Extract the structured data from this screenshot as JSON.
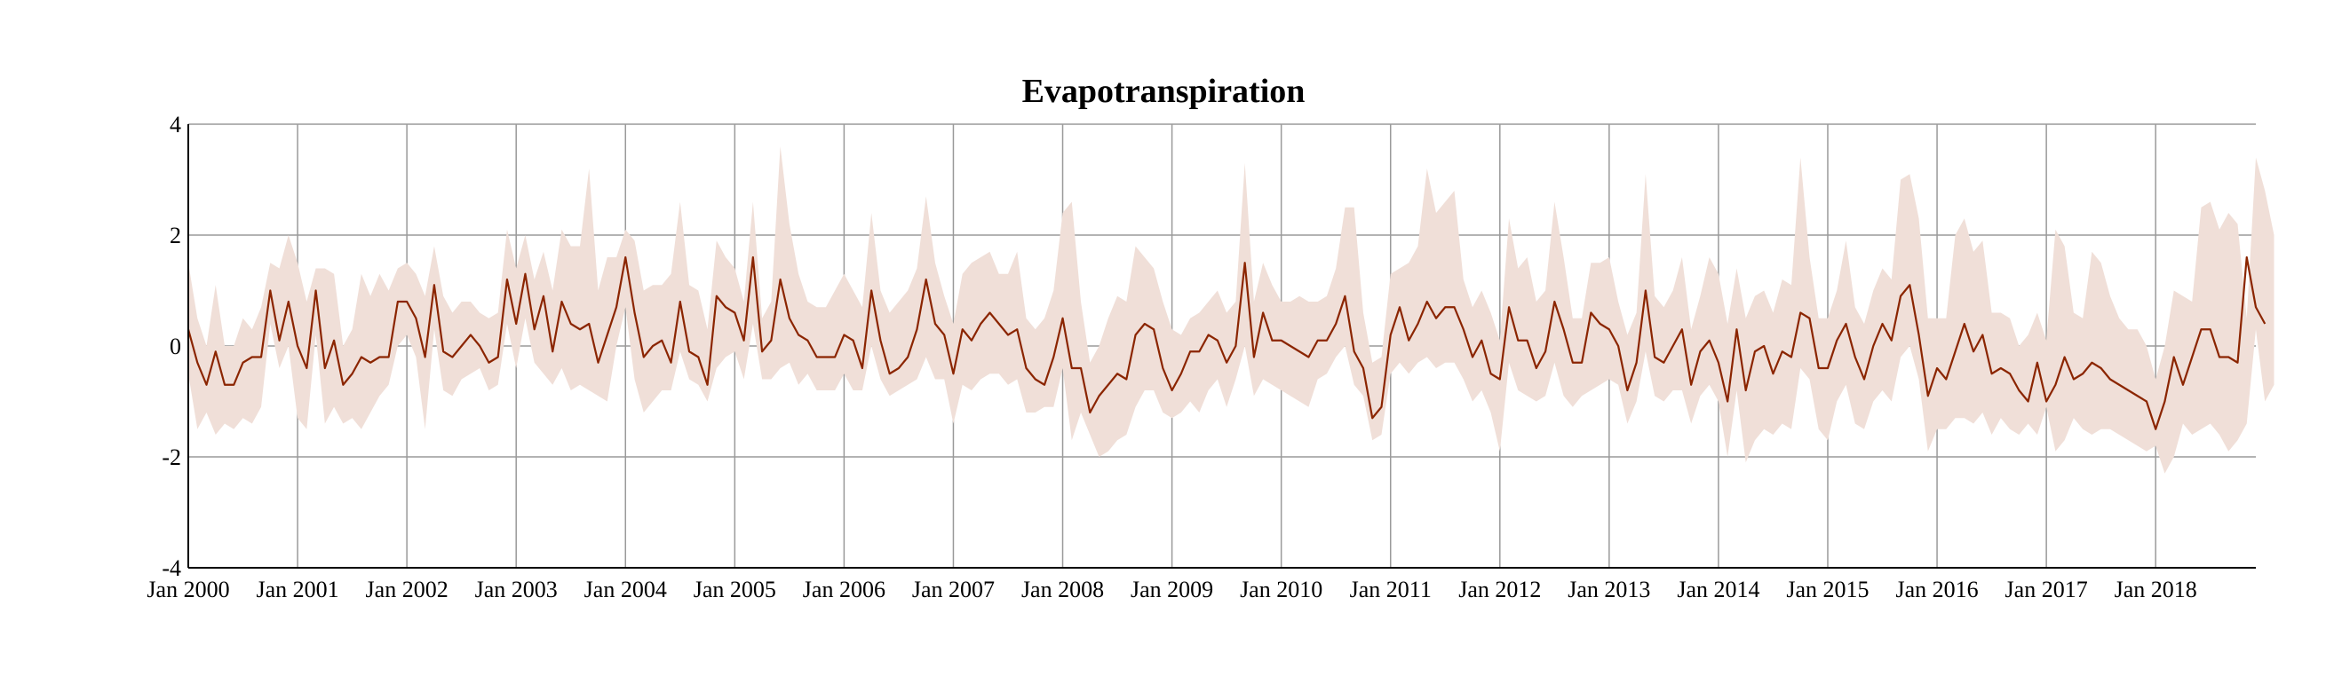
{
  "chart_data": {
    "type": "line",
    "title": "Evapotranspiration",
    "xlabel": "",
    "ylabel": "",
    "ylim": [
      -4,
      4
    ],
    "yticks": [
      4,
      2,
      0,
      -2,
      -4
    ],
    "ytick_labels": [
      "4",
      "2",
      "0",
      "-2",
      "-4"
    ],
    "xlim": [
      "2000-01",
      "2018-12"
    ],
    "xtick_labels": [
      "Jan 2000",
      "Jan 2001",
      "Jan 2002",
      "Jan 2003",
      "Jan 2004",
      "Jan 2005",
      "Jan 2006",
      "Jan 2007",
      "Jan 2008",
      "Jan 2009",
      "Jan 2010",
      "Jan 2011",
      "Jan 2012",
      "Jan 2013",
      "Jan 2014",
      "Jan 2015",
      "Jan 2016",
      "Jan 2017",
      "Jan 2018"
    ],
    "grid": true,
    "legend": "none",
    "colors": {
      "line": "#8b2500",
      "band": "#f0dfd8",
      "grid": "#9a9a9a"
    },
    "series": [
      {
        "role": "mean",
        "values": [
          0.3,
          -0.3,
          -0.7,
          -0.1,
          -0.7,
          -0.7,
          -0.3,
          -0.2,
          -0.2,
          1.0,
          0.1,
          0.8,
          0.0,
          -0.4,
          1.0,
          -0.4,
          0.1,
          -0.7,
          -0.5,
          -0.2,
          -0.3,
          -0.2,
          -0.2,
          0.8,
          0.8,
          0.5,
          -0.2,
          1.1,
          -0.1,
          -0.2,
          0.0,
          0.2,
          0.0,
          -0.3,
          -0.2,
          1.2,
          0.4,
          1.3,
          0.3,
          0.9,
          -0.1,
          0.8,
          0.4,
          0.3,
          0.4,
          -0.3,
          0.2,
          0.7,
          1.6,
          0.6,
          -0.2,
          0.0,
          0.1,
          -0.3,
          0.8,
          -0.1,
          -0.2,
          -0.7,
          0.9,
          0.7,
          0.6,
          0.1,
          1.6,
          -0.1,
          0.1,
          1.2,
          0.5,
          0.2,
          0.1,
          -0.2,
          -0.2,
          -0.2,
          0.2,
          0.1,
          -0.4,
          1.0,
          0.1,
          -0.5,
          -0.4,
          -0.2,
          0.3,
          1.2,
          0.4,
          0.2,
          -0.5,
          0.3,
          0.1,
          0.4,
          0.6,
          0.4,
          0.2,
          0.3,
          -0.4,
          -0.6,
          -0.7,
          -0.2,
          0.5,
          -0.4,
          -0.4,
          -1.2,
          -0.9,
          -0.7,
          -0.5,
          -0.6,
          0.2,
          0.4,
          0.3,
          -0.4,
          -0.8,
          -0.5,
          -0.1,
          -0.1,
          0.2,
          0.1,
          -0.3,
          0.0,
          1.5,
          -0.2,
          0.6,
          0.1,
          0.1,
          0.0,
          -0.1,
          -0.2,
          0.1,
          0.1,
          0.4,
          0.9,
          -0.1,
          -0.4,
          -1.3,
          -1.1,
          0.2,
          0.7,
          0.1,
          0.4,
          0.8,
          0.5,
          0.7,
          0.7,
          0.3,
          -0.2,
          0.1,
          -0.5,
          -0.6,
          0.7,
          0.1,
          0.1,
          -0.4,
          -0.1,
          0.8,
          0.3,
          -0.3,
          -0.3,
          0.6,
          0.4,
          0.3,
          0.0,
          -0.8,
          -0.3,
          1.0,
          -0.2,
          -0.3,
          0.0,
          0.3,
          -0.7,
          -0.1,
          0.1,
          -0.3,
          -1.0,
          0.3,
          -0.8,
          -0.1,
          0.0,
          -0.5,
          -0.1,
          -0.2,
          0.6,
          0.5,
          -0.4,
          -0.4,
          0.1,
          0.4,
          -0.2,
          -0.6,
          0.0,
          0.4,
          0.1,
          0.9,
          1.1,
          0.2,
          -0.9,
          -0.4,
          -0.6,
          -0.1,
          0.4,
          -0.1,
          0.2,
          -0.5,
          -0.4,
          -0.5,
          -0.8,
          -1.0,
          -0.3,
          -1.0,
          -0.7,
          -0.2,
          -0.6,
          -0.5,
          -0.3,
          -0.4,
          -0.6,
          -0.7,
          -0.8,
          -0.9,
          -1.0,
          -1.5,
          -1.0,
          -0.2,
          -0.7,
          -0.2,
          0.3,
          0.3,
          -0.2,
          -0.2,
          -0.3,
          1.6,
          0.7,
          0.4
        ]
      },
      {
        "role": "band_upper",
        "values": [
          1.5,
          0.5,
          0.0,
          1.1,
          0.0,
          0.0,
          0.5,
          0.3,
          0.7,
          1.5,
          1.4,
          2.0,
          1.5,
          0.8,
          1.4,
          1.4,
          1.3,
          0.0,
          0.3,
          1.3,
          0.9,
          1.3,
          1.0,
          1.4,
          1.5,
          1.3,
          0.9,
          1.8,
          0.9,
          0.6,
          0.8,
          0.8,
          0.6,
          0.5,
          0.6,
          2.1,
          1.4,
          2.0,
          1.2,
          1.7,
          1.0,
          2.1,
          1.8,
          1.8,
          3.2,
          1.0,
          1.6,
          1.6,
          2.1,
          1.9,
          1.0,
          1.1,
          1.1,
          1.3,
          2.6,
          1.1,
          1.0,
          0.3,
          1.9,
          1.6,
          1.4,
          0.8,
          2.6,
          0.5,
          0.8,
          3.6,
          2.2,
          1.3,
          0.8,
          0.7,
          0.7,
          1.0,
          1.3,
          1.0,
          0.7,
          2.4,
          1.0,
          0.6,
          0.8,
          1.0,
          1.4,
          2.7,
          1.5,
          0.9,
          0.4,
          1.3,
          1.5,
          1.6,
          1.7,
          1.3,
          1.3,
          1.7,
          0.5,
          0.3,
          0.5,
          1.0,
          2.4,
          2.6,
          0.8,
          -0.3,
          0.0,
          0.5,
          0.9,
          0.8,
          1.8,
          1.6,
          1.4,
          0.8,
          0.3,
          0.2,
          0.5,
          0.6,
          0.8,
          1.0,
          0.6,
          0.8,
          3.3,
          0.8,
          1.5,
          1.1,
          0.8,
          0.8,
          0.9,
          0.8,
          0.8,
          0.9,
          1.4,
          2.5,
          2.5,
          0.6,
          -0.3,
          -0.2,
          1.3,
          1.4,
          1.5,
          1.8,
          3.2,
          2.4,
          2.6,
          2.8,
          1.2,
          0.7,
          1.0,
          0.6,
          0.1,
          2.3,
          1.4,
          1.6,
          0.8,
          1.0,
          2.6,
          1.6,
          0.5,
          0.5,
          1.5,
          1.5,
          1.6,
          0.8,
          0.2,
          0.6,
          3.1,
          0.9,
          0.7,
          1.0,
          1.6,
          0.3,
          0.9,
          1.6,
          1.3,
          0.4,
          1.4,
          0.5,
          0.9,
          1.0,
          0.6,
          1.2,
          1.1,
          3.4,
          1.6,
          0.5,
          0.5,
          1.0,
          1.9,
          0.7,
          0.4,
          1.0,
          1.4,
          1.2,
          3.0,
          3.1,
          2.3,
          0.5,
          0.5,
          0.5,
          2.0,
          2.3,
          1.7,
          1.9,
          0.6,
          0.6,
          0.5,
          0.0,
          0.2,
          0.6,
          0.1,
          2.1,
          1.8,
          0.6,
          0.5,
          1.7,
          1.5,
          0.9,
          0.5,
          0.3,
          0.3,
          0.0,
          -0.6,
          0.0,
          1.0,
          0.9,
          0.8,
          2.5,
          2.6,
          2.1,
          2.4,
          2.2,
          0.5,
          3.4,
          2.8,
          2.0
        ]
      },
      {
        "role": "band_lower",
        "values": [
          -0.5,
          -1.5,
          -1.2,
          -1.6,
          -1.4,
          -1.5,
          -1.3,
          -1.4,
          -1.1,
          0.4,
          -0.4,
          0.0,
          -1.3,
          -1.5,
          0.2,
          -1.4,
          -1.1,
          -1.4,
          -1.3,
          -1.5,
          -1.2,
          -0.9,
          -0.7,
          0.0,
          0.2,
          -0.2,
          -1.5,
          0.3,
          -0.8,
          -0.9,
          -0.6,
          -0.5,
          -0.4,
          -0.8,
          -0.7,
          0.4,
          -0.4,
          0.5,
          -0.3,
          -0.5,
          -0.7,
          -0.4,
          -0.8,
          -0.7,
          -0.8,
          -0.9,
          -1.0,
          0.0,
          0.7,
          -0.6,
          -1.2,
          -1.0,
          -0.8,
          -0.8,
          -0.1,
          -0.6,
          -0.7,
          -1.0,
          -0.4,
          -0.2,
          -0.1,
          -0.6,
          0.4,
          -0.6,
          -0.6,
          -0.4,
          -0.3,
          -0.7,
          -0.5,
          -0.8,
          -0.8,
          -0.8,
          -0.5,
          -0.8,
          -0.8,
          0.0,
          -0.6,
          -0.9,
          -0.8,
          -0.7,
          -0.6,
          -0.2,
          -0.6,
          -0.6,
          -1.4,
          -0.7,
          -0.8,
          -0.6,
          -0.5,
          -0.5,
          -0.7,
          -0.6,
          -1.2,
          -1.2,
          -1.1,
          -1.1,
          -0.4,
          -1.7,
          -1.2,
          -1.6,
          -2.0,
          -1.9,
          -1.7,
          -1.6,
          -1.1,
          -0.8,
          -0.8,
          -1.2,
          -1.3,
          -1.2,
          -1.0,
          -1.2,
          -0.8,
          -0.6,
          -1.1,
          -0.6,
          0.0,
          -0.9,
          -0.6,
          -0.7,
          -0.8,
          -0.9,
          -1.0,
          -1.1,
          -0.6,
          -0.5,
          -0.2,
          0.0,
          -0.7,
          -0.9,
          -1.7,
          -1.6,
          -0.5,
          -0.3,
          -0.5,
          -0.3,
          -0.2,
          -0.4,
          -0.3,
          -0.3,
          -0.6,
          -1.0,
          -0.8,
          -1.2,
          -1.9,
          -0.3,
          -0.8,
          -0.9,
          -1.0,
          -0.9,
          -0.3,
          -0.9,
          -1.1,
          -0.9,
          -0.8,
          -0.7,
          -0.6,
          -0.7,
          -1.4,
          -1.0,
          -0.1,
          -0.9,
          -1.0,
          -0.8,
          -0.8,
          -1.4,
          -0.9,
          -0.7,
          -1.0,
          -2.0,
          -0.8,
          -2.1,
          -1.7,
          -1.5,
          -1.6,
          -1.4,
          -1.5,
          -0.4,
          -0.6,
          -1.5,
          -1.7,
          -1.0,
          -0.7,
          -1.4,
          -1.5,
          -1.0,
          -0.8,
          -1.0,
          -0.2,
          0.0,
          -0.6,
          -1.9,
          -1.5,
          -1.5,
          -1.3,
          -1.3,
          -1.4,
          -1.2,
          -1.6,
          -1.3,
          -1.5,
          -1.6,
          -1.4,
          -1.6,
          -1.1,
          -1.9,
          -1.7,
          -1.3,
          -1.5,
          -1.6,
          -1.5,
          -1.5,
          -1.6,
          -1.7,
          -1.8,
          -1.9,
          -1.8,
          -2.3,
          -2.0,
          -1.4,
          -1.6,
          -1.5,
          -1.4,
          -1.6,
          -1.9,
          -1.7,
          -1.4,
          0.3,
          -1.0,
          -0.7
        ]
      }
    ]
  }
}
